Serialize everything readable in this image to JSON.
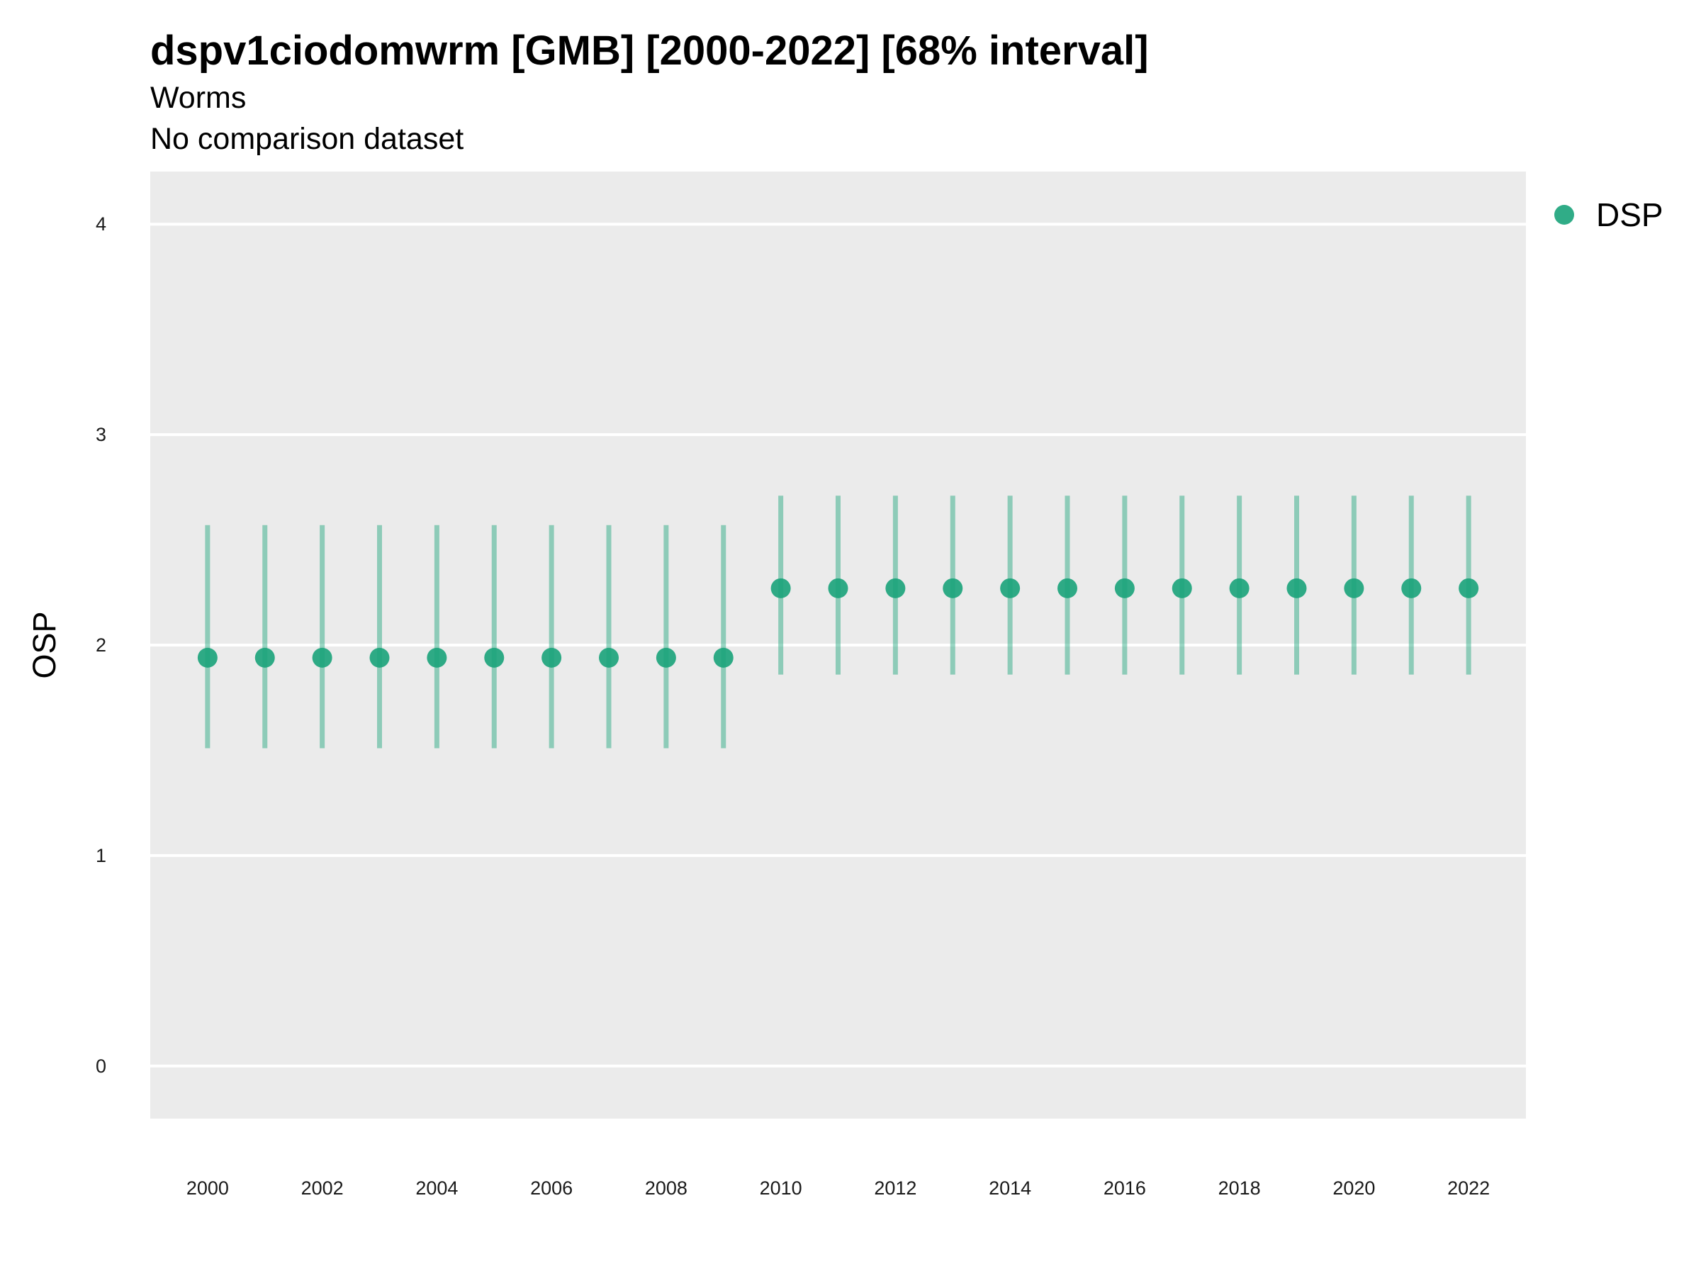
{
  "chart_data": {
    "type": "scatter",
    "title": "dspv1ciodomwrm [GMB] [2000-2022] [68% interval]",
    "subtitle": "Worms",
    "subtitle2": "No comparison dataset",
    "xlabel": "",
    "ylabel": "OSP",
    "xlim": [
      1999,
      2023
    ],
    "ylim": [
      -0.25,
      4.25
    ],
    "x_ticks": [
      2000,
      2002,
      2004,
      2006,
      2008,
      2010,
      2012,
      2014,
      2016,
      2018,
      2020,
      2022
    ],
    "y_ticks": [
      0,
      1,
      2,
      3,
      4
    ],
    "grid": true,
    "legend_position": "right",
    "series": [
      {
        "name": "DSP",
        "color": "#1aa37a",
        "points": [
          {
            "x": 2000,
            "y": 1.94,
            "lo": 1.51,
            "hi": 2.57
          },
          {
            "x": 2001,
            "y": 1.94,
            "lo": 1.51,
            "hi": 2.57
          },
          {
            "x": 2002,
            "y": 1.94,
            "lo": 1.51,
            "hi": 2.57
          },
          {
            "x": 2003,
            "y": 1.94,
            "lo": 1.51,
            "hi": 2.57
          },
          {
            "x": 2004,
            "y": 1.94,
            "lo": 1.51,
            "hi": 2.57
          },
          {
            "x": 2005,
            "y": 1.94,
            "lo": 1.51,
            "hi": 2.57
          },
          {
            "x": 2006,
            "y": 1.94,
            "lo": 1.51,
            "hi": 2.57
          },
          {
            "x": 2007,
            "y": 1.94,
            "lo": 1.51,
            "hi": 2.57
          },
          {
            "x": 2008,
            "y": 1.94,
            "lo": 1.51,
            "hi": 2.57
          },
          {
            "x": 2009,
            "y": 1.94,
            "lo": 1.51,
            "hi": 2.57
          },
          {
            "x": 2010,
            "y": 2.27,
            "lo": 1.86,
            "hi": 2.71
          },
          {
            "x": 2011,
            "y": 2.27,
            "lo": 1.86,
            "hi": 2.71
          },
          {
            "x": 2012,
            "y": 2.27,
            "lo": 1.86,
            "hi": 2.71
          },
          {
            "x": 2013,
            "y": 2.27,
            "lo": 1.86,
            "hi": 2.71
          },
          {
            "x": 2014,
            "y": 2.27,
            "lo": 1.86,
            "hi": 2.71
          },
          {
            "x": 2015,
            "y": 2.27,
            "lo": 1.86,
            "hi": 2.71
          },
          {
            "x": 2016,
            "y": 2.27,
            "lo": 1.86,
            "hi": 2.71
          },
          {
            "x": 2017,
            "y": 2.27,
            "lo": 1.86,
            "hi": 2.71
          },
          {
            "x": 2018,
            "y": 2.27,
            "lo": 1.86,
            "hi": 2.71
          },
          {
            "x": 2019,
            "y": 2.27,
            "lo": 1.86,
            "hi": 2.71
          },
          {
            "x": 2020,
            "y": 2.27,
            "lo": 1.86,
            "hi": 2.71
          },
          {
            "x": 2021,
            "y": 2.27,
            "lo": 1.86,
            "hi": 2.71
          },
          {
            "x": 2022,
            "y": 2.27,
            "lo": 1.86,
            "hi": 2.71
          }
        ]
      }
    ],
    "colors": {
      "panel": "#ebebeb",
      "grid": "#ffffff"
    }
  }
}
